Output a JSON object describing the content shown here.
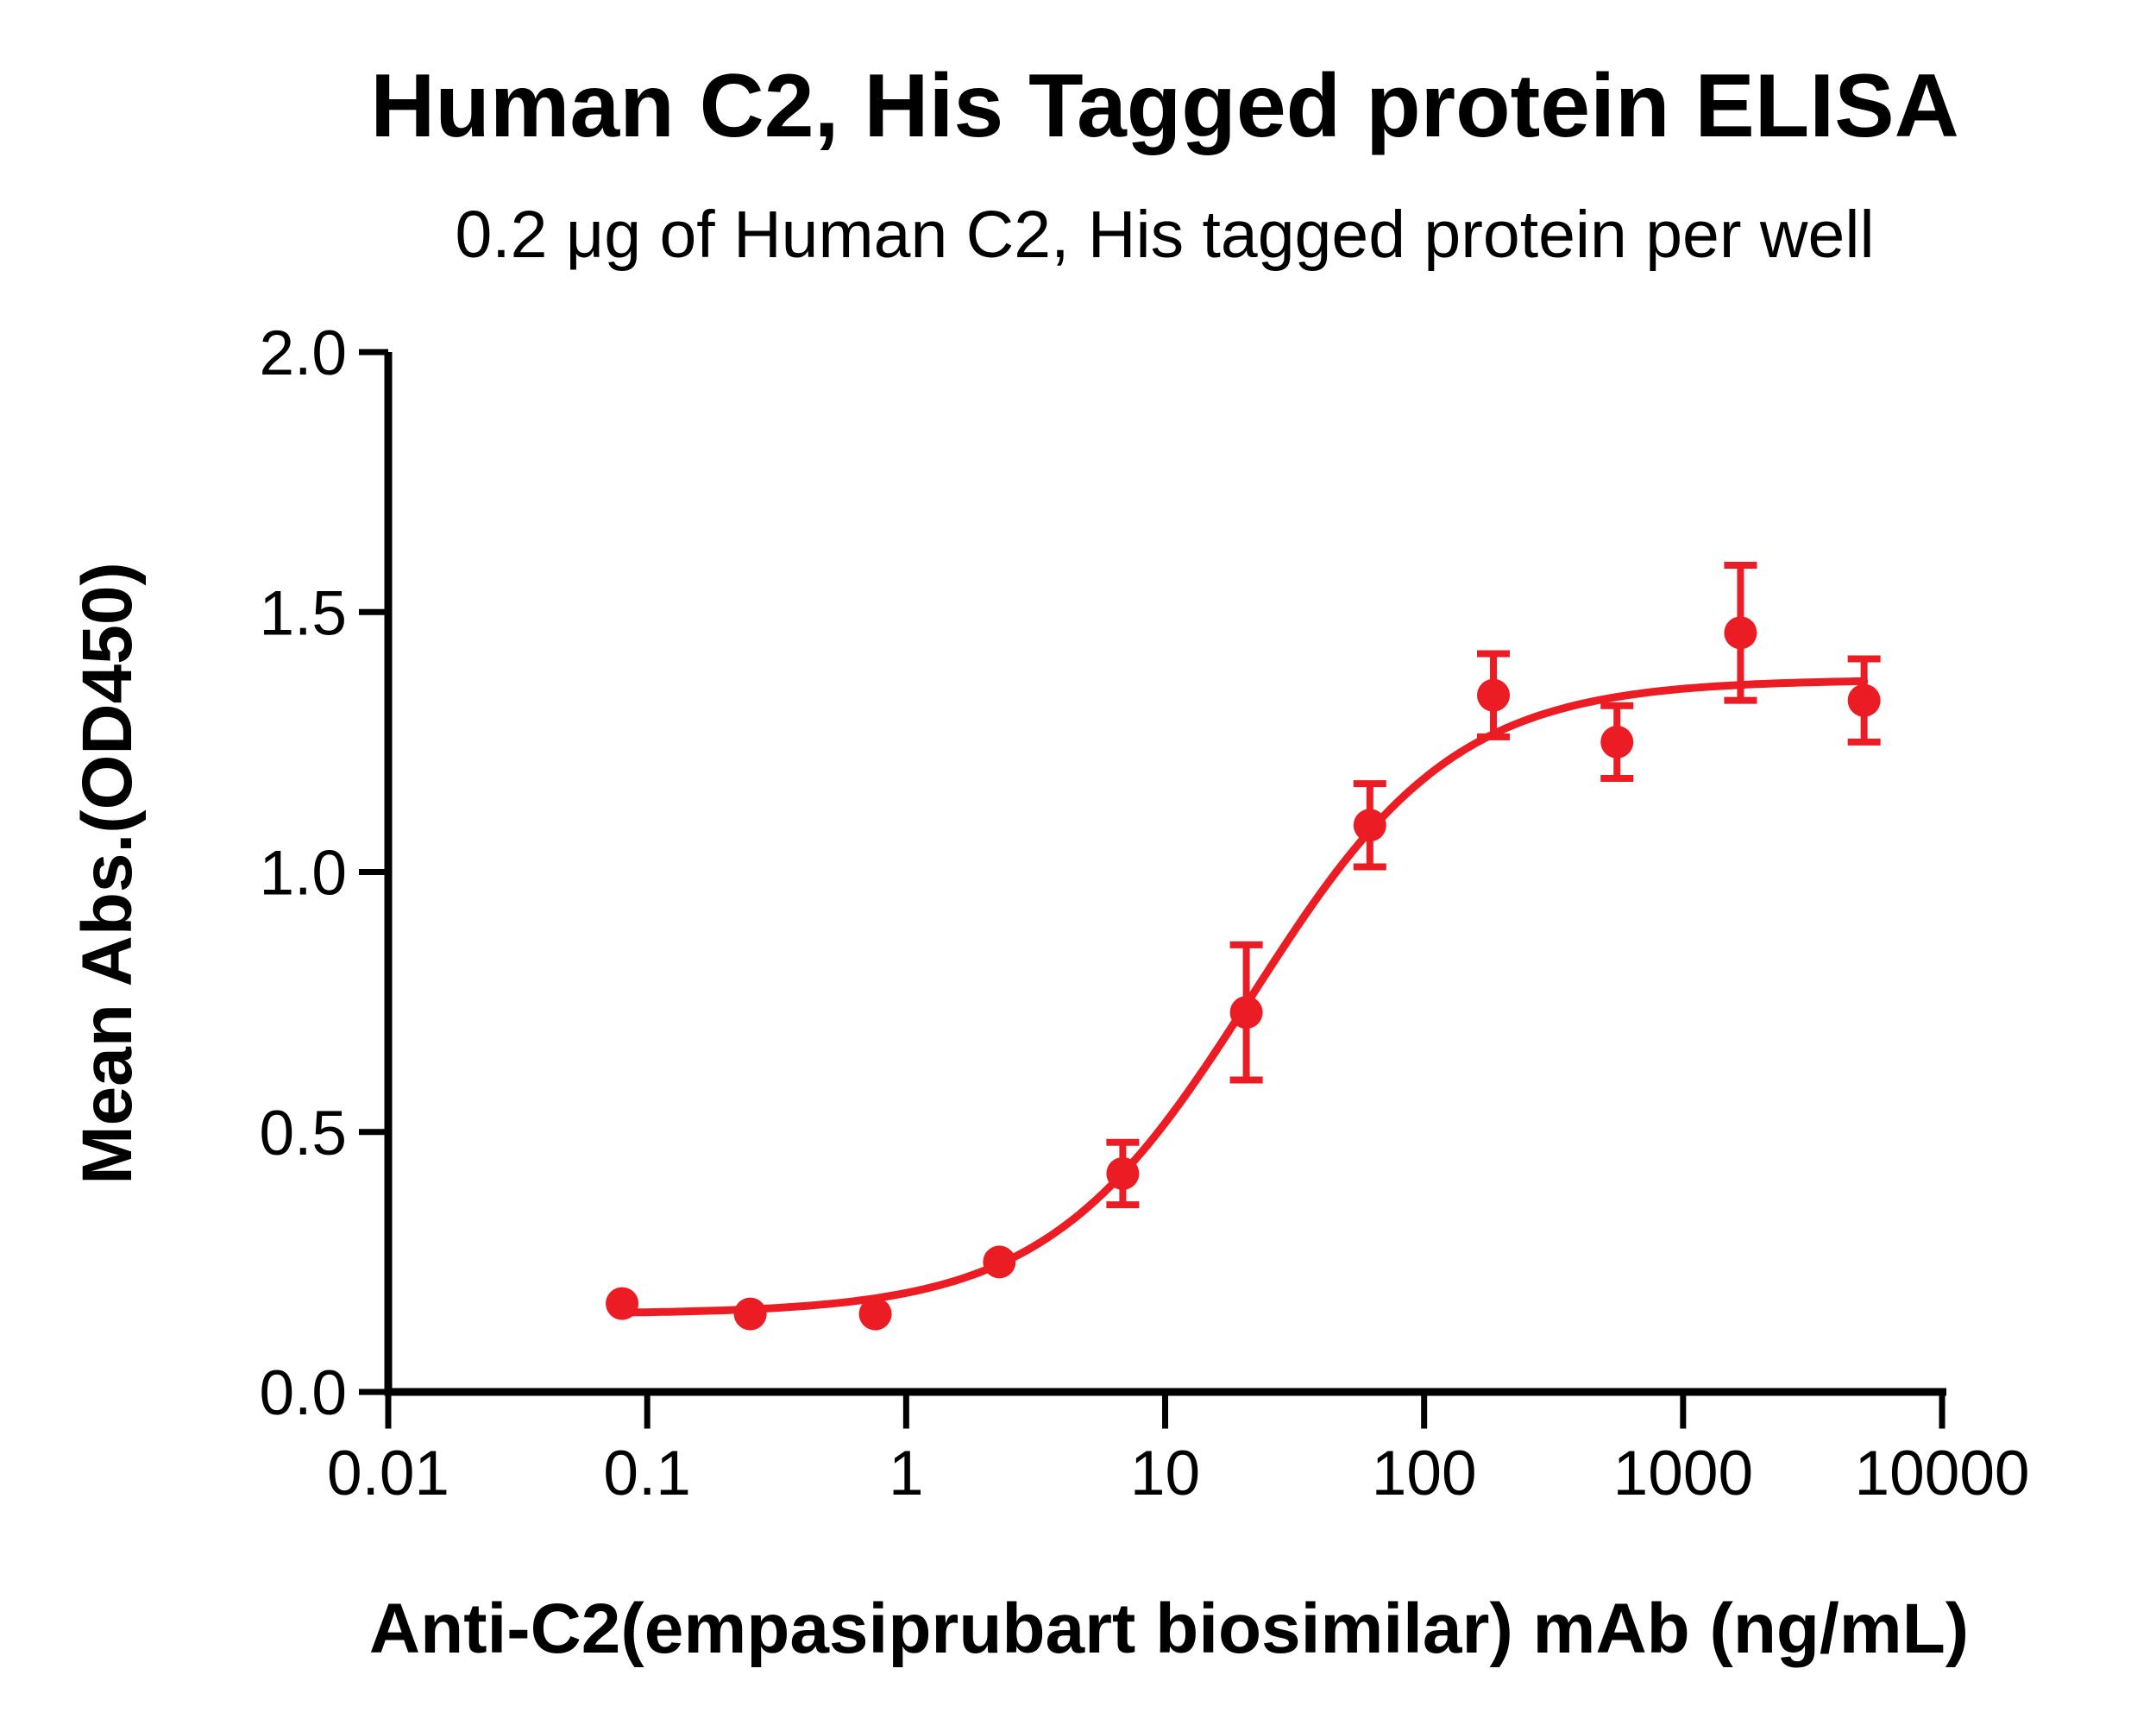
{
  "figure": {
    "background": "#FFFFFF",
    "axis_color": "#000000"
  },
  "chart_data": {
    "type": "scatter",
    "title": "Human C2, His Tagged protein ELISA",
    "subtitle": "0.2 μg of Human C2, His tagged protein per well",
    "xlabel": "Anti-C2(empasiprubart biosimilar) mAb (ng/mL)",
    "ylabel": "Mean Abs.(OD450)",
    "x_scale": "log10",
    "xlim": [
      0.01,
      10000
    ],
    "ylim": [
      0.0,
      2.0
    ],
    "x_tick_values": [
      0.01,
      0.1,
      1,
      10,
      100,
      1000,
      10000
    ],
    "x_tick_labels": [
      "0.01",
      "0.1",
      "1",
      "10",
      "100",
      "1000",
      "10000"
    ],
    "y_tick_values": [
      0.0,
      0.5,
      1.0,
      1.5,
      2.0
    ],
    "y_tick_labels": [
      "0.0",
      "0.5",
      "1.0",
      "1.5",
      "2.0"
    ],
    "grid": false,
    "legend": "none",
    "series": [
      {
        "name": "Anti-C2(empasiprubart biosimilar) mAb",
        "color": "#EC1C24",
        "marker": "circle",
        "x": [
          0.08,
          0.25,
          0.76,
          2.29,
          6.86,
          20.58,
          61.73,
          185.19,
          555.56,
          1666.67,
          5000
        ],
        "y": [
          0.17,
          0.15,
          0.15,
          0.25,
          0.42,
          0.73,
          1.09,
          1.34,
          1.25,
          1.46,
          1.33
        ],
        "sem": [
          0,
          0,
          0,
          0,
          0.06,
          0.13,
          0.08,
          0.08,
          0.07,
          0.13,
          0.08
        ]
      }
    ],
    "fit_curve": {
      "model": "4PL",
      "bottom": 0.15,
      "top": 1.37,
      "ec50_ng_ml": 21.5,
      "hill": 1.1,
      "x_start": 0.08,
      "x_end": 5000,
      "color": "#EC1C24"
    }
  }
}
